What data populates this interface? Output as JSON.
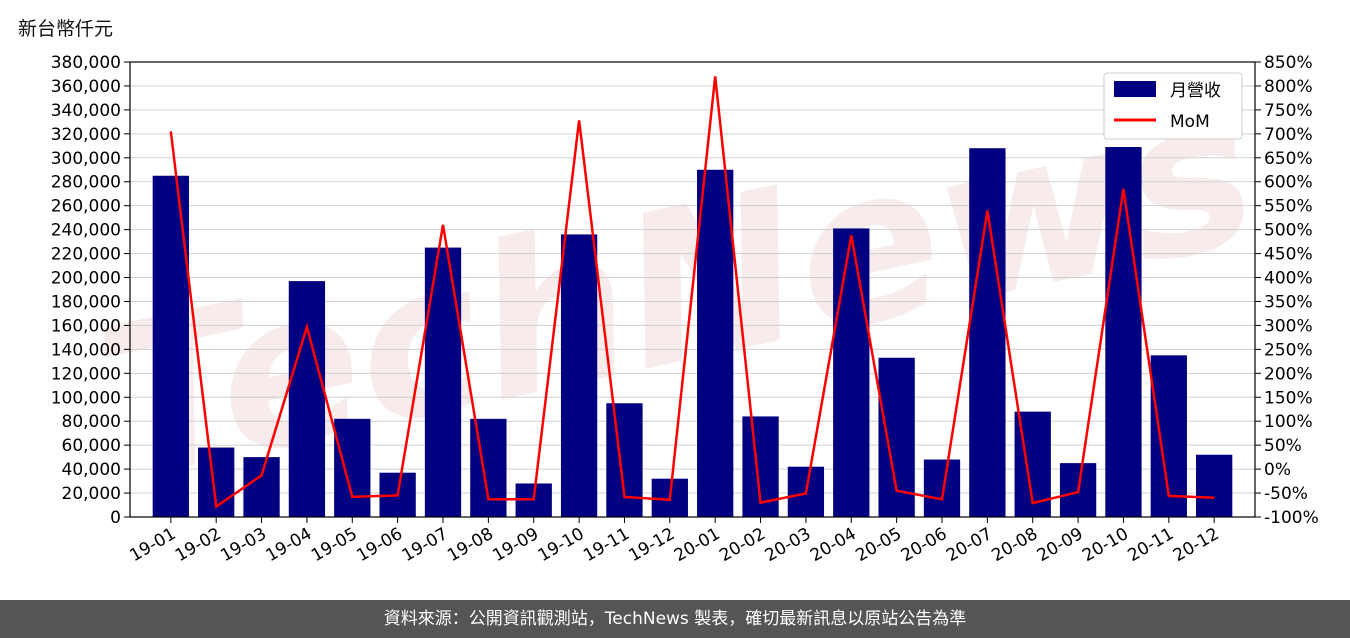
{
  "unit_label": "新台幣仟元",
  "footer_text": "資料來源：公開資訊觀測站，TechNews 製表，確切最新訊息以原站公告為準",
  "watermark": "TechNews",
  "colors": {
    "bar": "#000080",
    "line": "#ff0000",
    "footer_bg": "#555555",
    "watermark": "#f2dede"
  },
  "chart_data": {
    "type": "bar",
    "categories": [
      "19-01",
      "19-02",
      "19-03",
      "19-04",
      "19-05",
      "19-06",
      "19-07",
      "19-08",
      "19-09",
      "19-10",
      "19-11",
      "19-12",
      "20-01",
      "20-02",
      "20-03",
      "20-04",
      "20-05",
      "20-06",
      "20-07",
      "20-08",
      "20-09",
      "20-10",
      "20-11",
      "20-12"
    ],
    "series": [
      {
        "name": "月營收",
        "type": "bar",
        "axis": "left",
        "values": [
          285000,
          58000,
          50000,
          197000,
          82000,
          37000,
          225000,
          82000,
          28000,
          236000,
          95000,
          32000,
          290000,
          84000,
          42000,
          241000,
          133000,
          48000,
          308000,
          88000,
          45000,
          309000,
          135000,
          52000
        ]
      },
      {
        "name": "MoM",
        "type": "line",
        "axis": "right",
        "values": [
          705,
          -78,
          -13,
          297,
          -58,
          -55,
          510,
          -63,
          -63,
          728,
          -58,
          -64,
          820,
          -70,
          -51,
          488,
          -45,
          -63,
          540,
          -71,
          -48,
          585,
          -56,
          -60
        ]
      }
    ],
    "ylim_left": [
      0,
      380000
    ],
    "ylim_right": [
      -100,
      850
    ],
    "yticks_left": [
      "0",
      "20,000",
      "40,000",
      "60,000",
      "80,000",
      "100,000",
      "120,000",
      "140,000",
      "160,000",
      "180,000",
      "200,000",
      "220,000",
      "240,000",
      "260,000",
      "280,000",
      "300,000",
      "320,000",
      "340,000",
      "360,000",
      "380,000"
    ],
    "yticks_right": [
      "-100%",
      "-50%",
      "0%",
      "50%",
      "100%",
      "150%",
      "200%",
      "250%",
      "300%",
      "350%",
      "400%",
      "450%",
      "500%",
      "550%",
      "600%",
      "650%",
      "700%",
      "750%",
      "800%",
      "850%"
    ],
    "grid": true,
    "legend_position": "top-right"
  }
}
